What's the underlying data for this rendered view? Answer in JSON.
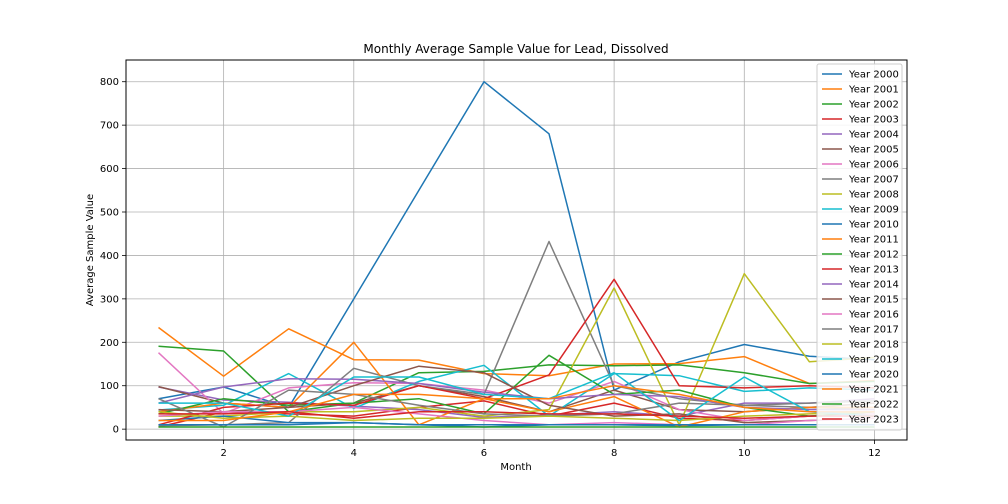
{
  "chart_data": {
    "type": "line",
    "title": "Monthly Average Sample Value for Lead, Dissolved",
    "xlabel": "Month",
    "ylabel": "Average Sample Value",
    "xlim": [
      0.5,
      12.5
    ],
    "ylim": [
      -25,
      850
    ],
    "xticks": [
      2,
      4,
      6,
      8,
      10,
      12
    ],
    "yticks": [
      0,
      100,
      200,
      300,
      400,
      500,
      600,
      700,
      800
    ],
    "grid": true,
    "legend_position": "top-right",
    "x": [
      1,
      2,
      3,
      4,
      5,
      6,
      7,
      8,
      9,
      10,
      11,
      12
    ],
    "series": [
      {
        "name": "Year 2000",
        "color": "#1f77b4",
        "values": [
          70,
          97,
          50,
          300,
          550,
          800,
          680,
          90,
          155,
          195,
          168,
          160
        ]
      },
      {
        "name": "Year 2001",
        "color": "#ff7f0e",
        "values": [
          234,
          122,
          231,
          160,
          159,
          128,
          123,
          150,
          151,
          167,
          105,
          112
        ]
      },
      {
        "name": "Year 2002",
        "color": "#2ca02c",
        "values": [
          191,
          180,
          40,
          60,
          130,
          133,
          148,
          146,
          148,
          130,
          105,
          110
        ]
      },
      {
        "name": "Year 2003",
        "color": "#d62728",
        "values": [
          5,
          40,
          35,
          30,
          50,
          65,
          30,
          60,
          25,
          20,
          30,
          40
        ]
      },
      {
        "name": "Year 2004",
        "color": "#9467bd",
        "values": [
          97,
          67,
          62,
          53,
          45,
          27,
          32,
          40,
          30,
          60,
          60,
          70
        ]
      },
      {
        "name": "Year 2005",
        "color": "#8c564b",
        "values": [
          98,
          60,
          50,
          60,
          100,
          75,
          40,
          90,
          45,
          40,
          50,
          60
        ]
      },
      {
        "name": "Year 2006",
        "color": "#e377c2",
        "values": [
          176,
          36,
          95,
          107,
          105,
          90,
          60,
          110,
          45,
          20,
          30,
          35
        ]
      },
      {
        "name": "Year 2007",
        "color": "#7f7f7f",
        "values": [
          8,
          10,
          15,
          140,
          100,
          80,
          432,
          100,
          70,
          55,
          50,
          45
        ]
      },
      {
        "name": "Year 2008",
        "color": "#bcbd22",
        "values": [
          30,
          30,
          40,
          40,
          50,
          30,
          45,
          325,
          10,
          358,
          155,
          165
        ]
      },
      {
        "name": "Year 2009",
        "color": "#17becf",
        "values": [
          44,
          55,
          128,
          48,
          110,
          147,
          30,
          128,
          123,
          87,
          95,
          90
        ]
      },
      {
        "name": "Year 2010",
        "color": "#1f77b4",
        "values": [
          20,
          30,
          15,
          15,
          10,
          5,
          10,
          10,
          8,
          10,
          10,
          10
        ]
      },
      {
        "name": "Year 2011",
        "color": "#ff7f0e",
        "values": [
          40,
          60,
          50,
          200,
          10,
          70,
          40,
          75,
          5,
          40,
          50,
          50
        ]
      },
      {
        "name": "Year 2012",
        "color": "#2ca02c",
        "values": [
          35,
          70,
          55,
          60,
          70,
          35,
          170,
          80,
          90,
          50,
          30,
          40
        ]
      },
      {
        "name": "Year 2013",
        "color": "#d62728",
        "values": [
          10,
          50,
          60,
          55,
          100,
          70,
          125,
          345,
          100,
          95,
          100,
          95
        ]
      },
      {
        "name": "Year 2014",
        "color": "#9467bd",
        "values": [
          60,
          97,
          116,
          115,
          105,
          85,
          70,
          80,
          75,
          50,
          45,
          45
        ]
      },
      {
        "name": "Year 2015",
        "color": "#8c564b",
        "values": [
          45,
          40,
          50,
          100,
          145,
          130,
          55,
          30,
          35,
          15,
          20,
          25
        ]
      },
      {
        "name": "Year 2016",
        "color": "#e377c2",
        "values": [
          30,
          40,
          40,
          50,
          35,
          20,
          10,
          15,
          10,
          10,
          20,
          25
        ]
      },
      {
        "name": "Year 2017",
        "color": "#7f7f7f",
        "values": [
          70,
          5,
          90,
          80,
          55,
          35,
          30,
          35,
          60,
          55,
          60,
          65
        ]
      },
      {
        "name": "Year 2018",
        "color": "#bcbd22",
        "values": [
          40,
          25,
          30,
          20,
          25,
          25,
          30,
          25,
          20,
          30,
          35,
          40
        ]
      },
      {
        "name": "Year 2019",
        "color": "#17becf",
        "values": [
          60,
          60,
          30,
          120,
          120,
          80,
          70,
          130,
          20,
          120,
          40,
          30
        ]
      },
      {
        "name": "Year 2020",
        "color": "#1f77b4",
        "values": [
          10,
          10,
          10,
          15,
          10,
          10,
          10,
          10,
          10,
          10,
          10,
          10
        ]
      },
      {
        "name": "Year 2021",
        "color": "#ff7f0e",
        "values": [
          20,
          20,
          40,
          80,
          80,
          70,
          70,
          100,
          80,
          50,
          40,
          40
        ]
      },
      {
        "name": "Year 2022",
        "color": "#2ca02c",
        "values": [
          5,
          5,
          5,
          5,
          5,
          5,
          5,
          5,
          5,
          5,
          5,
          5
        ]
      },
      {
        "name": "Year 2023",
        "color": "#d62728",
        "values": [
          35,
          35,
          40,
          25,
          40,
          40,
          35,
          35,
          30,
          25,
          30,
          30
        ]
      }
    ]
  }
}
